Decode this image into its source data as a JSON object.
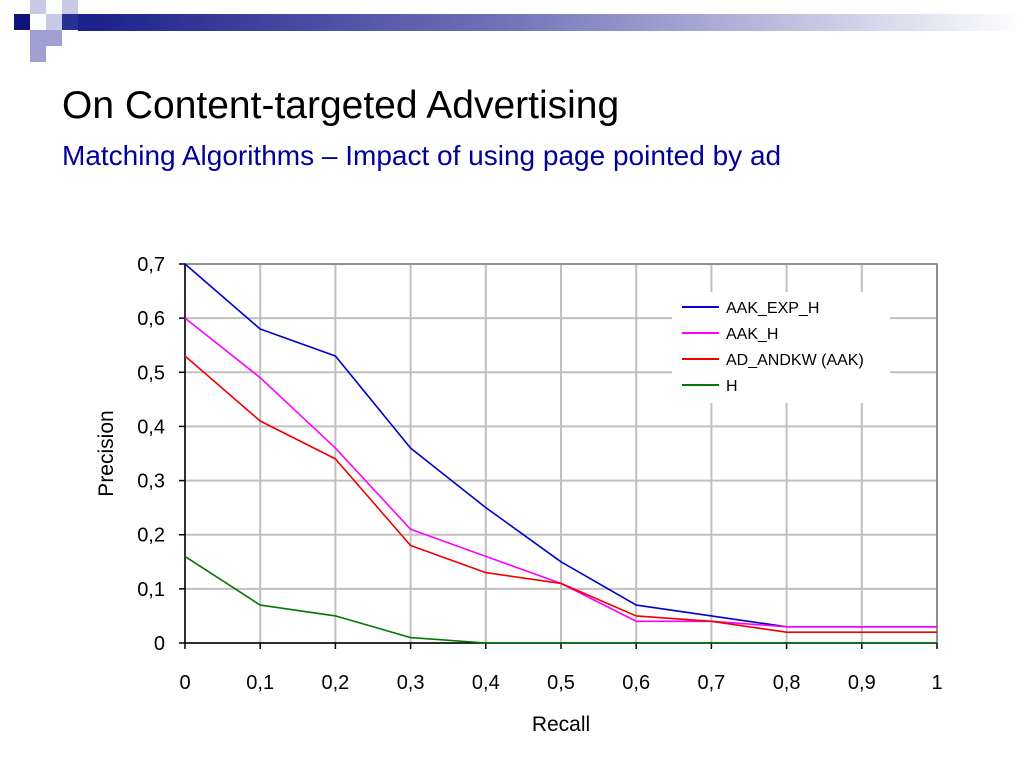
{
  "slide": {
    "title": "On Content-targeted Advertising",
    "subtitle": "Matching Algorithms – Impact of using page pointed by ad",
    "title_color": "#000000",
    "subtitle_color": "#000099"
  },
  "chart_data": {
    "type": "line",
    "title": "",
    "xlabel": "Recall",
    "ylabel": "Precision",
    "xlim": [
      0,
      1
    ],
    "ylim": [
      0,
      0.7
    ],
    "x_ticks": [
      "0",
      "0,1",
      "0,2",
      "0,3",
      "0,4",
      "0,5",
      "0,6",
      "0,7",
      "0,8",
      "0,9",
      "1"
    ],
    "y_ticks": [
      "0",
      "0,1",
      "0,2",
      "0,3",
      "0,4",
      "0,5",
      "0,6",
      "0,7"
    ],
    "grid": true,
    "legend_position": "top-right",
    "x": [
      0,
      0.1,
      0.2,
      0.3,
      0.4,
      0.5,
      0.6,
      0.7,
      0.8,
      0.9,
      1
    ],
    "series": [
      {
        "name": "AAK_EXP_H",
        "color": "#0000cc",
        "values": [
          0.7,
          0.58,
          0.53,
          0.36,
          0.25,
          0.15,
          0.07,
          0.05,
          0.03,
          0.03,
          0.03
        ]
      },
      {
        "name": "AAK_H",
        "color": "#ff00ff",
        "values": [
          0.6,
          0.49,
          0.36,
          0.21,
          0.16,
          0.11,
          0.04,
          0.04,
          0.03,
          0.03,
          0.03
        ]
      },
      {
        "name": "AD_ANDKW (AAK)",
        "color": "#ee0000",
        "values": [
          0.53,
          0.41,
          0.34,
          0.18,
          0.13,
          0.11,
          0.05,
          0.04,
          0.02,
          0.02,
          0.02
        ]
      },
      {
        "name": "H",
        "color": "#007700",
        "values": [
          0.16,
          0.07,
          0.05,
          0.01,
          0.0,
          0.0,
          0.0,
          0.0,
          0.0,
          0.0,
          0.0
        ]
      }
    ]
  }
}
